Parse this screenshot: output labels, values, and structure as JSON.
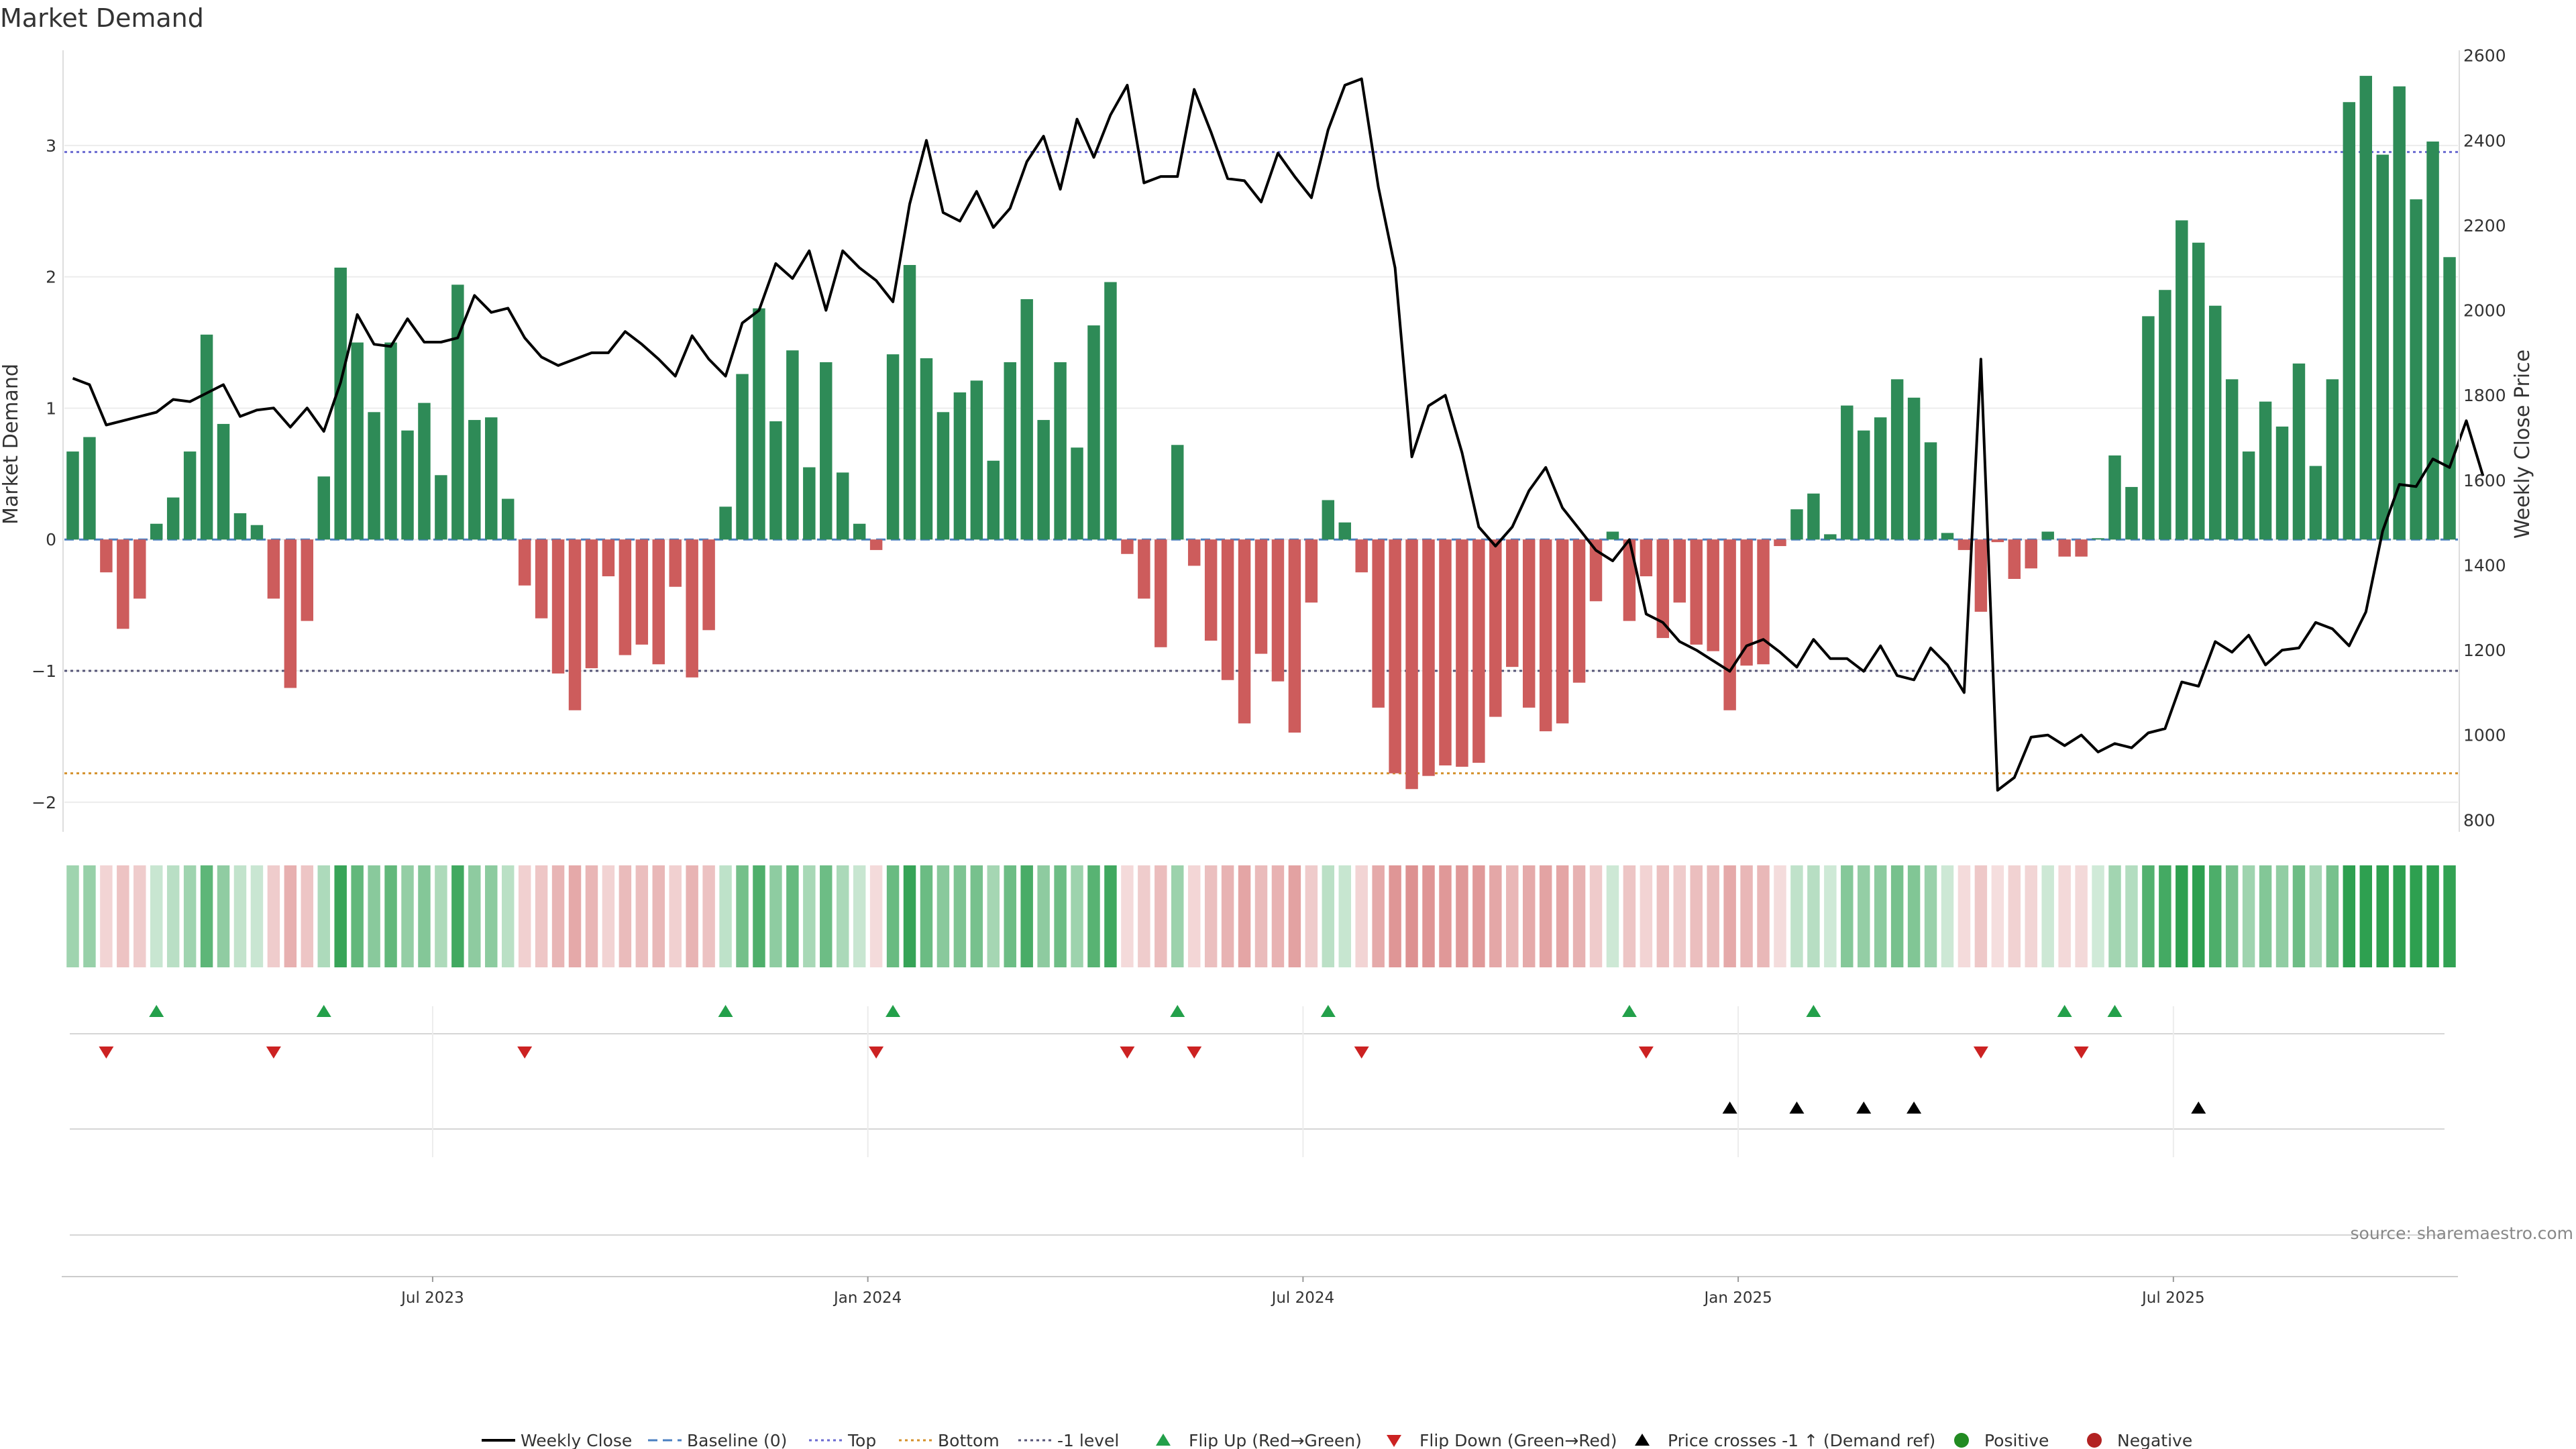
{
  "chart_data": {
    "type": "bar",
    "title": "Market Demand",
    "ylabel_left": "Market Demand",
    "ylabel_right": "Weekly Close Price",
    "ylim_left": [
      -2.2,
      3.75
    ],
    "ylim_right": [
      780,
      2620
    ],
    "yticks_left": [
      {
        "value": 3,
        "label": "3"
      },
      {
        "value": 2,
        "label": "2"
      },
      {
        "value": 1,
        "label": "1"
      },
      {
        "value": 0,
        "label": "0"
      },
      {
        "value": -1,
        "label": "−1"
      },
      {
        "value": -2,
        "label": "−2"
      }
    ],
    "yticks_right": [
      {
        "value": 2600,
        "label": "2600"
      },
      {
        "value": 2400,
        "label": "2400"
      },
      {
        "value": 2200,
        "label": "2200"
      },
      {
        "value": 2000,
        "label": "2000"
      },
      {
        "value": 1800,
        "label": "1800"
      },
      {
        "value": 1600,
        "label": "1600"
      },
      {
        "value": 1400,
        "label": "1400"
      },
      {
        "value": 1200,
        "label": "1200"
      },
      {
        "value": 1000,
        "label": "1000"
      },
      {
        "value": 800,
        "label": "800"
      }
    ],
    "x_ticks": [
      {
        "index": 22,
        "label": "Jul 2023"
      },
      {
        "index": 48,
        "label": "Jan 2024"
      },
      {
        "index": 74,
        "label": "Jul 2024"
      },
      {
        "index": 100,
        "label": "Jan 2025"
      },
      {
        "index": 126,
        "label": "Jul 2025"
      }
    ],
    "levels": {
      "top": 2.95,
      "bottom": -1.78,
      "minus_one": -1.0,
      "baseline": 0
    },
    "demand": [
      0.67,
      0.78,
      -0.25,
      -0.68,
      -0.45,
      0.12,
      0.32,
      0.67,
      1.56,
      0.88,
      0.2,
      0.11,
      -0.45,
      -1.13,
      -0.62,
      0.48,
      2.07,
      1.5,
      0.97,
      1.5,
      0.83,
      1.04,
      0.49,
      1.94,
      0.91,
      0.93,
      0.31,
      -0.35,
      -0.6,
      -1.02,
      -1.3,
      -0.98,
      -0.28,
      -0.88,
      -0.8,
      -0.95,
      -0.36,
      -1.05,
      -0.69,
      0.25,
      1.26,
      1.76,
      0.9,
      1.44,
      0.55,
      1.35,
      0.51,
      0.12,
      -0.08,
      1.41,
      2.09,
      1.38,
      0.97,
      1.12,
      1.21,
      0.6,
      1.35,
      1.83,
      0.91,
      1.35,
      0.7,
      1.63,
      1.96,
      -0.11,
      -0.45,
      -0.82,
      0.72,
      -0.2,
      -0.77,
      -1.07,
      -1.4,
      -0.87,
      -1.08,
      -1.47,
      -0.48,
      0.3,
      0.13,
      -0.25,
      -1.28,
      -1.78,
      -1.9,
      -1.8,
      -1.72,
      -1.73,
      -1.7,
      -1.35,
      -0.97,
      -1.28,
      -1.46,
      -1.4,
      -1.09,
      -0.47,
      0.06,
      -0.62,
      -0.28,
      -0.75,
      -0.48,
      -0.8,
      -0.85,
      -1.3,
      -0.96,
      -0.95,
      -0.05,
      0.23,
      0.35,
      0.04,
      1.02,
      0.83,
      0.93,
      1.22,
      1.08,
      0.74,
      0.05,
      -0.08,
      -0.55,
      -0.02,
      -0.3,
      -0.22,
      0.06,
      -0.13,
      -0.13,
      0.01,
      0.64,
      0.4,
      1.7,
      1.9,
      2.43,
      2.26,
      1.78,
      1.22,
      0.67,
      1.05,
      0.86,
      1.34,
      0.56,
      1.22,
      3.33,
      3.53,
      2.93,
      3.45,
      2.59,
      3.03,
      2.15
    ],
    "price": [
      1840,
      1825,
      1730,
      1740,
      1750,
      1760,
      1790,
      1785,
      1805,
      1825,
      1750,
      1765,
      1770,
      1725,
      1770,
      1715,
      1830,
      1990,
      1920,
      1915,
      1980,
      1925,
      1925,
      1935,
      2035,
      1995,
      2005,
      1935,
      1890,
      1870,
      1885,
      1900,
      1900,
      1950,
      1920,
      1885,
      1845,
      1940,
      1885,
      1845,
      1970,
      2000,
      2110,
      2075,
      2140,
      2000,
      2140,
      2100,
      2070,
      2020,
      2250,
      2400,
      2230,
      2210,
      2280,
      2195,
      2240,
      2350,
      2410,
      2285,
      2450,
      2360,
      2460,
      2530,
      2300,
      2315,
      2315,
      2520,
      2420,
      2310,
      2305,
      2255,
      2370,
      2315,
      2265,
      2425,
      2530,
      2545,
      2290,
      2100,
      1655,
      1775,
      1800,
      1665,
      1490,
      1445,
      1490,
      1575,
      1630,
      1535,
      1485,
      1435,
      1410,
      1460,
      1285,
      1265,
      1220,
      1200,
      1175,
      1150,
      1210,
      1225,
      1195,
      1160,
      1225,
      1180,
      1180,
      1150,
      1210,
      1140,
      1130,
      1205,
      1165,
      1100,
      1885,
      870,
      900,
      995,
      1000,
      975,
      1000,
      960,
      980,
      970,
      1005,
      1015,
      1125,
      1115,
      1220,
      1195,
      1235,
      1165,
      1200,
      1205,
      1265,
      1250,
      1210,
      1290,
      1480,
      1590,
      1585,
      1650,
      1630,
      1740,
      1610
    ],
    "heatmap_intensity": [
      0.67,
      0.78,
      -0.25,
      -0.68,
      -0.45,
      0.12,
      0.32,
      0.67,
      1.56,
      0.88,
      0.2,
      0.11,
      -0.45,
      -1.13,
      -0.62,
      0.48,
      2.07,
      1.5,
      0.97,
      1.5,
      0.83,
      1.04,
      0.49,
      1.94,
      0.91,
      0.93,
      0.31,
      -0.35,
      -0.6,
      -1.02,
      -1.3,
      -0.98,
      -0.28,
      -0.88,
      -0.8,
      -0.95,
      -0.36,
      -1.05,
      -0.69,
      0.25,
      1.26,
      1.76,
      0.9,
      1.44,
      0.55,
      1.35,
      0.51,
      0.12,
      -0.08,
      1.41,
      2.09,
      1.38,
      0.97,
      1.12,
      1.21,
      0.6,
      1.35,
      1.83,
      0.91,
      1.35,
      0.7,
      1.63,
      1.96,
      -0.11,
      -0.45,
      -0.82,
      0.72,
      -0.2,
      -0.77,
      -1.07,
      -1.4,
      -0.87,
      -1.08,
      -1.47,
      -0.48,
      0.3,
      0.13,
      -0.25,
      -1.28,
      -1.78,
      -1.9,
      -1.8,
      -1.72,
      -1.73,
      -1.7,
      -1.35,
      -0.97,
      -1.28,
      -1.46,
      -1.4,
      -1.09,
      -0.47,
      0.06,
      -0.62,
      -0.28,
      -0.75,
      -0.48,
      -0.8,
      -0.85,
      -1.3,
      -0.96,
      -0.95,
      -0.05,
      0.23,
      0.35,
      0.04,
      1.02,
      0.83,
      0.93,
      1.22,
      1.08,
      0.74,
      0.05,
      -0.08,
      -0.55,
      -0.02,
      -0.3,
      -0.22,
      0.06,
      -0.13,
      -0.13,
      0.01,
      0.64,
      0.4,
      1.7,
      1.9,
      2.43,
      2.26,
      1.78,
      1.22,
      0.67,
      1.05,
      0.86,
      1.34,
      0.56,
      1.22,
      3.33,
      3.53,
      2.93,
      3.45,
      2.59,
      3.03,
      2.15
    ],
    "flip_up_indices": [
      5,
      15,
      39,
      49,
      66,
      75,
      93,
      104,
      119,
      122
    ],
    "flip_down_indices": [
      2,
      12,
      27,
      48,
      63,
      67,
      77,
      94,
      114,
      120
    ],
    "price_cross_indices": [
      99,
      103,
      107,
      110,
      127
    ],
    "legend": [
      {
        "key": "weekly_close",
        "label": "Weekly Close"
      },
      {
        "key": "baseline",
        "label": "Baseline (0)"
      },
      {
        "key": "top",
        "label": "Top"
      },
      {
        "key": "bottom",
        "label": "Bottom"
      },
      {
        "key": "minus_one",
        "label": "-1 level"
      },
      {
        "key": "flip_up",
        "label": "Flip Up (Red→Green)"
      },
      {
        "key": "flip_down",
        "label": "Flip Down (Green→Red)"
      },
      {
        "key": "price_cross",
        "label": "Price crosses -1 ↑ (Demand ref)"
      },
      {
        "key": "positive",
        "label": "Positive"
      },
      {
        "key": "negative",
        "label": "Negative"
      }
    ],
    "source": "source: sharemaestro.com",
    "colors": {
      "positive": "#2e8b57",
      "negative": "#cd5c5c",
      "price": "#000000",
      "baseline": "#4a7fc1",
      "top": "#6a6ad0",
      "bottom": "#d4902a",
      "minus_one": "#555577",
      "flip_up": "#23a04a",
      "flip_down": "#cc2222",
      "cross": "#000000",
      "dot_positive": "#228b22",
      "dot_negative": "#b22222"
    }
  }
}
